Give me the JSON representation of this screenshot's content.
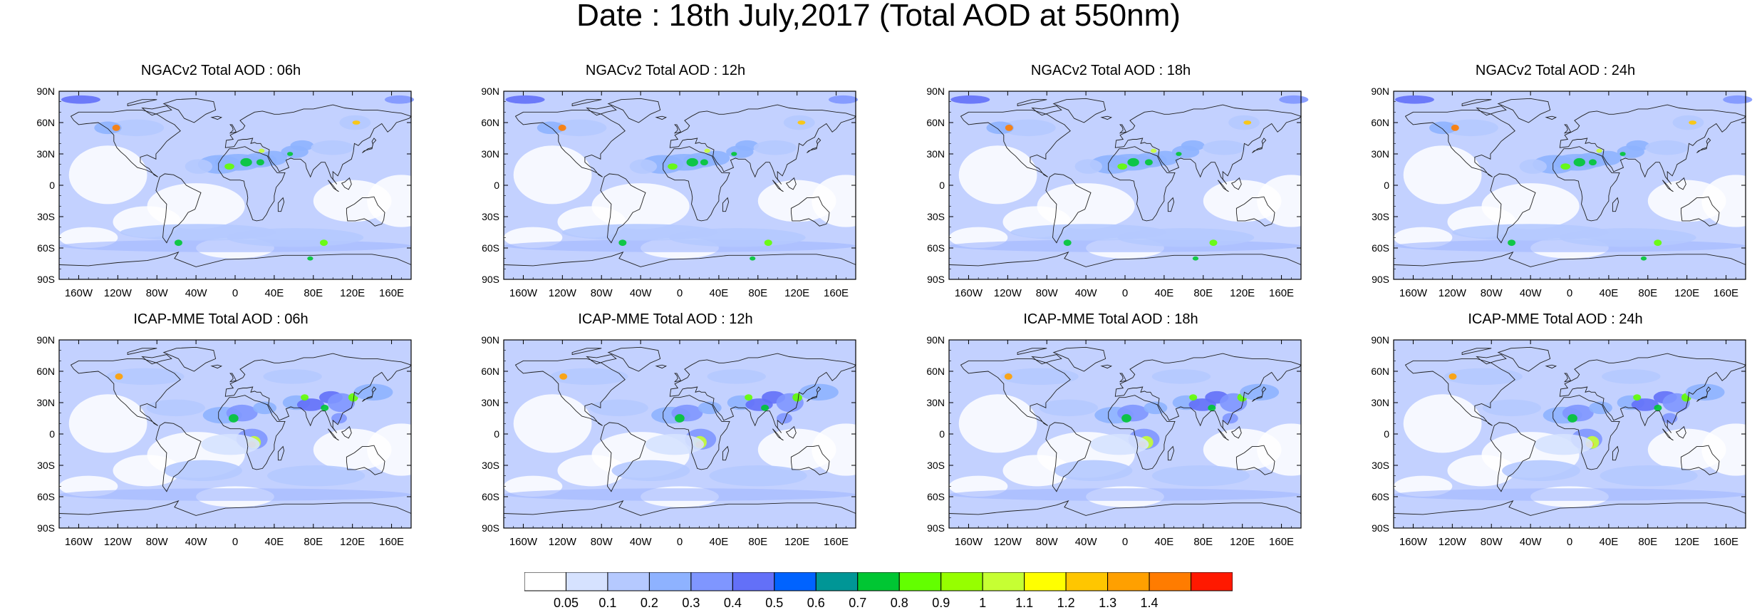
{
  "title": "Date : 18th July,2017 (Total AOD at 550nm)",
  "panels": [
    {
      "title": "NGACv2 Total AOD : 06h"
    },
    {
      "title": "NGACv2 Total AOD : 12h"
    },
    {
      "title": "NGACv2 Total AOD : 18h"
    },
    {
      "title": "NGACv2 Total AOD : 24h"
    },
    {
      "title": "ICAP-MME Total AOD : 06h"
    },
    {
      "title": "ICAP-MME Total AOD : 12h"
    },
    {
      "title": "ICAP-MME Total AOD : 18h"
    },
    {
      "title": "ICAP-MME Total AOD : 24h"
    }
  ],
  "axes": {
    "lat_labels": [
      "90N",
      "60N",
      "30N",
      "0",
      "30S",
      "60S",
      "90S"
    ],
    "lon_labels": [
      "160W",
      "120W",
      "80W",
      "40W",
      "0",
      "40E",
      "80E",
      "120E",
      "160E"
    ]
  },
  "colorbar": {
    "levels": [
      "0.05",
      "0.1",
      "0.2",
      "0.3",
      "0.4",
      "0.5",
      "0.6",
      "0.7",
      "0.8",
      "0.9",
      "1",
      "1.1",
      "1.2",
      "1.3",
      "1.4"
    ],
    "colors": [
      "#ffffff",
      "#d6e2ff",
      "#b5c9ff",
      "#8eb2ff",
      "#7f96ff",
      "#6370f8",
      "#0063ff",
      "#009696",
      "#00c633",
      "#63ff00",
      "#96ff00",
      "#c6ff33",
      "#ffff00",
      "#ffc600",
      "#ffa000",
      "#ff7c00",
      "#ff1900"
    ]
  }
}
